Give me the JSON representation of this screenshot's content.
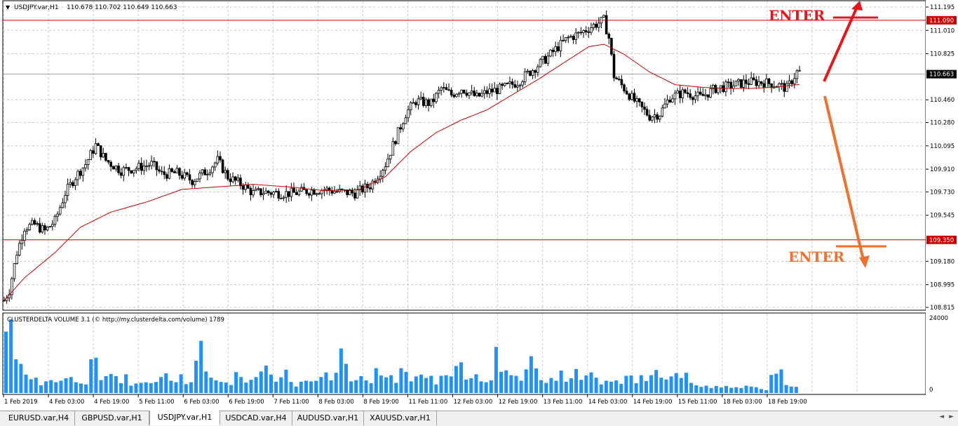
{
  "header": {
    "arrow": "▼",
    "symbol_info": "USDJPY.var,H1",
    "ohlc": "110.678 110.702 110.649 110.663"
  },
  "indicator": {
    "label": "CLUSTERDELTA VOLUME 3.1 (© http://my.clusterdelta.com/volume) 1789",
    "scale_top": "24000",
    "scale_bottom": "0"
  },
  "price_axis": [
    "111.195",
    "111.010",
    "110.825",
    "110.460",
    "110.280",
    "110.095",
    "109.910",
    "109.730",
    "109.545",
    "109.180",
    "108.995",
    "108.815"
  ],
  "price_labels": {
    "upper_line": "111.090",
    "current": "110.663",
    "lower_line": "109.350"
  },
  "annotations": {
    "enter_up": "ENTER",
    "enter_down": "ENTER"
  },
  "time_axis": [
    "1 Feb 2019",
    "4 Feb 03:00",
    "4 Feb 19:00",
    "5 Feb 11:00",
    "6 Feb 03:00",
    "6 Feb 19:00",
    "7 Feb 11:00",
    "8 Feb 03:00",
    "8 Feb 19:00",
    "11 Feb 11:00",
    "12 Feb 03:00",
    "12 Feb 19:00",
    "13 Feb 11:00",
    "14 Feb 03:00",
    "14 Feb 19:00",
    "15 Feb 11:00",
    "18 Feb 03:00",
    "18 Feb 19:00"
  ],
  "tabs": [
    {
      "label": "EURUSD.var,H4",
      "active": false
    },
    {
      "label": "GBPUSD.var,H1",
      "active": false
    },
    {
      "label": "USDJPY.var,H1",
      "active": true
    },
    {
      "label": "USDCAD.var,H4",
      "active": false
    },
    {
      "label": "AUDUSD.var,H1",
      "active": false
    },
    {
      "label": "XAUUSD.var,H1",
      "active": false
    }
  ],
  "colors": {
    "candle": "#000000",
    "ma_line": "#cc0000",
    "level_line": "#cc0000",
    "volume_bar": "#1e90ff",
    "enter_up": "#e8141a",
    "enter_down": "#f07030",
    "grid": "#c8c8c8"
  },
  "chart_data": {
    "type": "candlestick",
    "symbol": "USDJPY.var",
    "timeframe": "H1",
    "ylim": [
      108.815,
      111.195
    ],
    "levels": [
      111.09,
      109.35
    ],
    "current_price": 110.663,
    "close_path": [
      [
        0,
        108.87
      ],
      [
        2,
        108.95
      ],
      [
        5,
        109.25
      ],
      [
        8,
        109.45
      ],
      [
        12,
        109.47
      ],
      [
        16,
        109.42
      ],
      [
        20,
        109.5
      ],
      [
        24,
        109.72
      ],
      [
        28,
        109.85
      ],
      [
        32,
        109.95
      ],
      [
        36,
        110.1
      ],
      [
        40,
        109.98
      ],
      [
        46,
        109.9
      ],
      [
        52,
        109.92
      ],
      [
        58,
        109.95
      ],
      [
        62,
        109.87
      ],
      [
        68,
        109.88
      ],
      [
        74,
        109.82
      ],
      [
        80,
        109.9
      ],
      [
        84,
        109.98
      ],
      [
        88,
        109.85
      ],
      [
        94,
        109.78
      ],
      [
        98,
        109.72
      ],
      [
        102,
        109.73
      ],
      [
        108,
        109.72
      ],
      [
        114,
        109.72
      ],
      [
        120,
        109.74
      ],
      [
        126,
        109.75
      ],
      [
        132,
        109.73
      ],
      [
        138,
        109.72
      ],
      [
        144,
        109.78
      ],
      [
        150,
        109.95
      ],
      [
        154,
        110.15
      ],
      [
        158,
        110.35
      ],
      [
        162,
        110.45
      ],
      [
        168,
        110.43
      ],
      [
        172,
        110.55
      ],
      [
        176,
        110.5
      ],
      [
        180,
        110.55
      ],
      [
        186,
        110.48
      ],
      [
        190,
        110.52
      ],
      [
        196,
        110.55
      ],
      [
        202,
        110.6
      ],
      [
        208,
        110.7
      ],
      [
        214,
        110.8
      ],
      [
        218,
        110.88
      ],
      [
        222,
        110.95
      ],
      [
        226,
        110.98
      ],
      [
        232,
        111.05
      ],
      [
        236,
        111.09
      ],
      [
        238,
        110.95
      ],
      [
        240,
        110.65
      ],
      [
        244,
        110.55
      ],
      [
        248,
        110.45
      ],
      [
        254,
        110.33
      ],
      [
        258,
        110.35
      ],
      [
        262,
        110.48
      ],
      [
        268,
        110.52
      ],
      [
        274,
        110.48
      ],
      [
        280,
        110.55
      ],
      [
        286,
        110.57
      ],
      [
        292,
        110.6
      ],
      [
        298,
        110.6
      ],
      [
        304,
        110.58
      ],
      [
        308,
        110.55
      ],
      [
        312,
        110.68
      ]
    ],
    "ma_path": [
      [
        0,
        108.87
      ],
      [
        8,
        109.05
      ],
      [
        20,
        109.25
      ],
      [
        30,
        109.45
      ],
      [
        42,
        109.57
      ],
      [
        56,
        109.65
      ],
      [
        70,
        109.75
      ],
      [
        84,
        109.77
      ],
      [
        98,
        109.79
      ],
      [
        112,
        109.77
      ],
      [
        126,
        109.74
      ],
      [
        140,
        109.75
      ],
      [
        150,
        109.85
      ],
      [
        160,
        110.05
      ],
      [
        170,
        110.2
      ],
      [
        180,
        110.3
      ],
      [
        190,
        110.38
      ],
      [
        200,
        110.5
      ],
      [
        210,
        110.62
      ],
      [
        220,
        110.75
      ],
      [
        230,
        110.88
      ],
      [
        236,
        110.9
      ],
      [
        244,
        110.82
      ],
      [
        254,
        110.68
      ],
      [
        264,
        110.58
      ],
      [
        274,
        110.56
      ],
      [
        284,
        110.55
      ],
      [
        294,
        110.55
      ],
      [
        304,
        110.56
      ],
      [
        312,
        110.58
      ]
    ],
    "volume": {
      "ylim": [
        0,
        24000
      ],
      "values": [
        20000,
        24000,
        11000,
        9500,
        6000,
        4500,
        5000,
        2500,
        3800,
        4200,
        3500,
        4000,
        4800,
        5200,
        3500,
        3100,
        2800,
        11000,
        11500,
        4200,
        5500,
        6200,
        5500,
        3200,
        6100,
        2400,
        3100,
        3300,
        3500,
        3200,
        3600,
        5200,
        6400,
        4000,
        3500,
        6100,
        2900,
        3500,
        10500,
        17000,
        7000,
        5000,
        4100,
        3600,
        3400,
        2600,
        6800,
        5200,
        3400,
        4300,
        5200,
        7000,
        8900,
        6000,
        3700,
        5100,
        7600,
        3600,
        2100,
        3700,
        4000,
        3800,
        4000,
        5200,
        6700,
        4100,
        6600,
        14500,
        9500,
        3800,
        4200,
        5500,
        4100,
        3200,
        8100,
        5700,
        5100,
        5800,
        3300,
        8100,
        6900,
        3800,
        5400,
        6000,
        4900,
        5600,
        2800,
        5600,
        5800,
        5400,
        8800,
        10000,
        4400,
        4800,
        6100,
        3800,
        3500,
        4100,
        15000,
        6900,
        7400,
        5800,
        5600,
        4000,
        7700,
        12000,
        8000,
        4200,
        3300,
        4900,
        4000,
        7300,
        3700,
        4800,
        7800,
        4300,
        5700,
        6700,
        5000,
        2800,
        4000,
        3700,
        4100,
        3000,
        5600,
        5700,
        3200,
        5800,
        3900,
        5800,
        7500,
        5000,
        4400,
        5400,
        6500,
        4900,
        6600,
        3300,
        2500,
        2000,
        2400,
        1600,
        2300,
        1800,
        2300,
        1700,
        1900,
        1600,
        2400,
        2100,
        1900,
        1300,
        900,
        5900,
        6300,
        7700,
        2600,
        2100,
        2000
      ]
    }
  }
}
